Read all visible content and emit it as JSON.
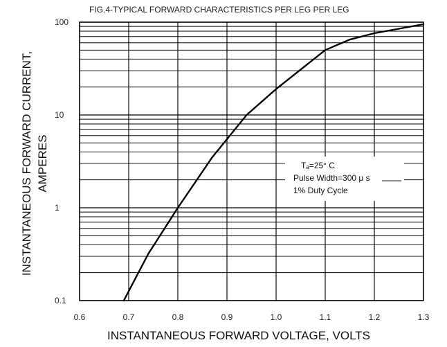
{
  "chart_data": {
    "type": "line",
    "title": "FIG.4-TYPICAL FORWARD CHARACTERISTICS  PER LEG  PER LEG",
    "xlabel": "INSTANTANEOUS FORWARD VOLTAGE, VOLTS",
    "ylabel": [
      "INSTANTANEOUS FORWARD CURRENT,",
      "AMPERES"
    ],
    "xlim": [
      0.6,
      1.3
    ],
    "ylim": [
      0.1,
      100
    ],
    "yscale": "log",
    "grid": true,
    "x_ticks": [
      0.6,
      0.7,
      0.8,
      0.9,
      1.0,
      1.1,
      1.2,
      1.3
    ],
    "x_tick_labels": [
      "0.6",
      "0.7",
      "0.8",
      "0.9",
      "1.0",
      "1.1",
      "1.2",
      "1.3"
    ],
    "y_ticks": [
      0.1,
      1,
      10,
      100
    ],
    "y_tick_labels": [
      "0.1",
      "1",
      "10",
      "100"
    ],
    "annotation": [
      "Tₐ=25° C",
      "Pulse Width=300  μ s",
      "1% Duty Cycle"
    ],
    "series": [
      {
        "x": [
          0.69,
          0.74,
          0.8,
          0.87,
          0.94,
          1.0,
          1.06,
          1.1,
          1.15,
          1.2,
          1.25,
          1.3
        ],
        "y": [
          0.1,
          0.32,
          1.0,
          3.5,
          10.0,
          19.0,
          34.0,
          50.0,
          65.0,
          76.0,
          85.0,
          95.0
        ]
      }
    ],
    "colors": {
      "line": "#000000",
      "grid": "#000000",
      "background": "#ffffff"
    }
  }
}
